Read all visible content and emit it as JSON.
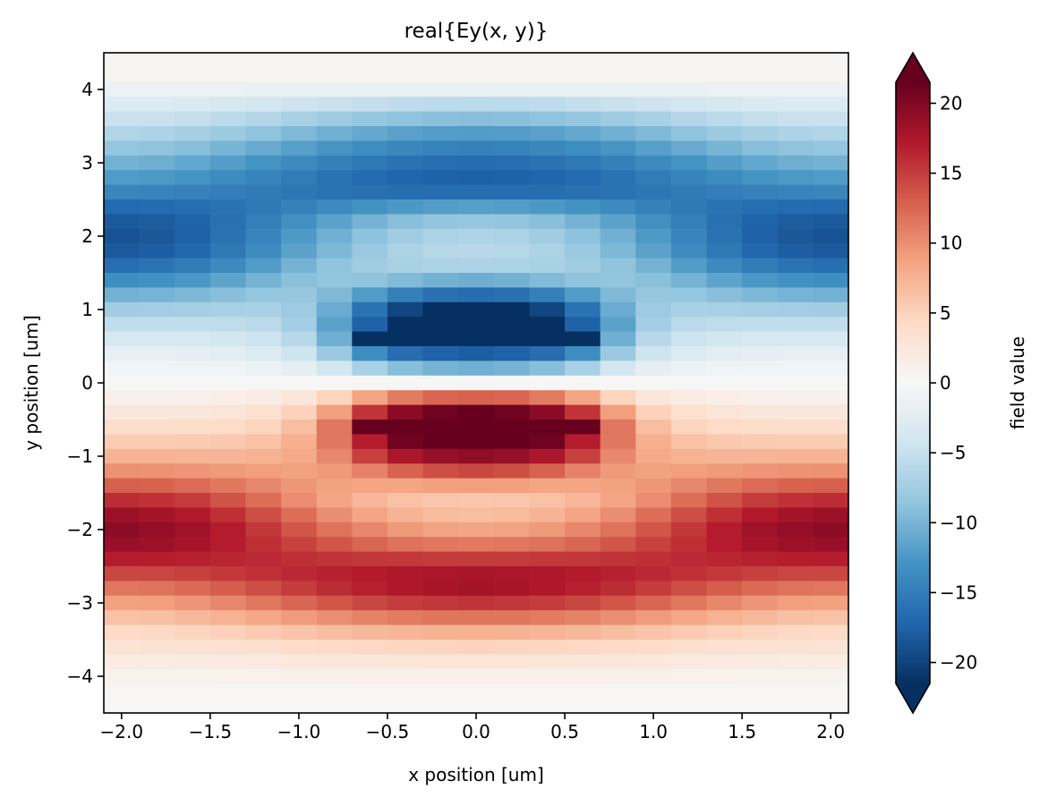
{
  "chart_data": {
    "type": "heatmap",
    "title": "real{Ey(x, y)}",
    "xlabel": "x position [um]",
    "ylabel": "y position [um]",
    "colorbar_label": "field value",
    "colormap": "RdBu_r",
    "colorbar_extend": "both",
    "xlim": [
      -2.1,
      2.1
    ],
    "ylim": [
      -4.5,
      4.5
    ],
    "clim": [
      -21.5,
      21.5
    ],
    "x_ticks": [
      -2.0,
      -1.5,
      -1.0,
      -0.5,
      0.0,
      0.5,
      1.0,
      1.5,
      2.0
    ],
    "x_tick_labels": [
      "−2.0",
      "−1.5",
      "−1.0",
      "−0.5",
      "0.0",
      "0.5",
      "1.0",
      "1.5",
      "2.0"
    ],
    "y_ticks": [
      4,
      3,
      2,
      1,
      0,
      -1,
      -2,
      -3,
      -4
    ],
    "y_tick_labels": [
      "4",
      "3",
      "2",
      "1",
      "0",
      "−1",
      "−2",
      "−3",
      "−4"
    ],
    "colorbar_ticks": [
      20,
      15,
      10,
      5,
      0,
      -5,
      -10,
      -15,
      -20
    ],
    "colorbar_tick_labels": [
      "20",
      "15",
      "10",
      "5",
      "0",
      "−5",
      "−10",
      "−15",
      "−20"
    ],
    "x": [
      -2.0,
      -1.8,
      -1.6,
      -1.4,
      -1.2,
      -1.0,
      -0.8,
      -0.6,
      -0.4,
      -0.2,
      0.0,
      0.2,
      0.4,
      0.6,
      0.8,
      1.0,
      1.2,
      1.4,
      1.6,
      1.8,
      2.0
    ],
    "y": [
      4.4,
      4.2,
      4.0,
      3.8,
      3.6,
      3.4,
      3.2,
      3.0,
      2.8,
      2.6,
      2.4,
      2.2,
      2.0,
      1.8,
      1.6,
      1.4,
      1.2,
      1.0,
      0.8,
      0.6,
      0.4,
      0.2,
      0.0,
      -0.2,
      -0.4,
      -0.6,
      -0.8,
      -1.0,
      -1.2,
      -1.4,
      -1.6,
      -1.8,
      -2.0,
      -2.2,
      -2.4,
      -2.6,
      -2.8,
      -3.0,
      -3.2,
      -3.4,
      -3.6,
      -3.8,
      -4.0,
      -4.2,
      -4.4
    ],
    "z": [
      [
        0.3,
        0.3,
        0.3,
        0.3,
        0.3,
        0.3,
        0.3,
        0.3,
        0.3,
        0.3,
        0.3,
        0.3,
        0.3,
        0.3,
        0.3,
        0.3,
        0.3,
        0.3,
        0.3,
        0.3,
        0.3
      ],
      [
        0.5,
        0.5,
        0.5,
        0.5,
        0.5,
        0.5,
        0.5,
        0.5,
        0.5,
        0.5,
        0.5,
        0.5,
        0.5,
        0.5,
        0.5,
        0.5,
        0.5,
        0.5,
        0.5,
        0.5,
        0.5
      ],
      [
        -1.4,
        -1.4,
        -1.4,
        -1.4,
        -1.5,
        -1.5,
        -1.5,
        -1.5,
        -1.5,
        -1.5,
        -1.5,
        -1.5,
        -1.5,
        -1.5,
        -1.5,
        -1.5,
        -1.5,
        -1.4,
        -1.4,
        -1.4,
        -1.4
      ],
      [
        -3.0,
        -3.1,
        -3.3,
        -3.6,
        -4.0,
        -4.4,
        -4.8,
        -5.2,
        -5.5,
        -5.7,
        -5.8,
        -5.7,
        -5.5,
        -5.2,
        -4.8,
        -4.4,
        -4.0,
        -3.6,
        -3.3,
        -3.1,
        -3.0
      ],
      [
        -4.7,
        -4.8,
        -5.2,
        -5.7,
        -6.3,
        -7.0,
        -7.7,
        -8.3,
        -8.7,
        -9.0,
        -9.1,
        -9.0,
        -8.7,
        -8.3,
        -7.7,
        -7.0,
        -6.3,
        -5.7,
        -5.2,
        -4.8,
        -4.7
      ],
      [
        -6.5,
        -6.7,
        -7.2,
        -7.9,
        -8.7,
        -9.6,
        -10.4,
        -11.1,
        -11.7,
        -12.0,
        -12.1,
        -12.0,
        -11.7,
        -11.1,
        -10.4,
        -9.6,
        -8.7,
        -7.9,
        -7.2,
        -6.7,
        -6.5
      ],
      [
        -8.4,
        -8.7,
        -9.2,
        -10.0,
        -10.9,
        -11.8,
        -12.7,
        -13.5,
        -14.1,
        -14.5,
        -14.6,
        -14.5,
        -14.1,
        -13.5,
        -12.7,
        -11.8,
        -10.9,
        -10.0,
        -9.2,
        -8.7,
        -8.4
      ],
      [
        -10.3,
        -10.6,
        -11.2,
        -12.0,
        -12.9,
        -13.8,
        -14.7,
        -15.5,
        -16.1,
        -16.5,
        -16.6,
        -16.5,
        -16.1,
        -15.5,
        -14.7,
        -13.8,
        -12.9,
        -12.0,
        -11.2,
        -10.6,
        -10.3
      ],
      [
        -12.2,
        -12.4,
        -12.9,
        -13.6,
        -14.4,
        -15.2,
        -16.0,
        -16.7,
        -17.2,
        -17.5,
        -17.6,
        -17.5,
        -17.2,
        -16.7,
        -16.0,
        -15.2,
        -14.4,
        -13.6,
        -12.9,
        -12.4,
        -12.2
      ],
      [
        -14.2,
        -14.4,
        -14.6,
        -14.9,
        -15.3,
        -15.7,
        -16.0,
        -16.2,
        -16.4,
        -16.5,
        -16.5,
        -16.5,
        -16.4,
        -16.2,
        -16.0,
        -15.7,
        -15.3,
        -14.9,
        -14.6,
        -14.4,
        -14.2
      ],
      [
        -16.8,
        -16.7,
        -16.4,
        -16.0,
        -15.4,
        -14.6,
        -13.8,
        -13.0,
        -12.4,
        -12.0,
        -11.9,
        -12.0,
        -12.4,
        -13.0,
        -13.8,
        -14.6,
        -15.4,
        -16.0,
        -16.4,
        -16.7,
        -16.8
      ],
      [
        -18.2,
        -17.9,
        -17.3,
        -16.2,
        -14.8,
        -13.2,
        -11.6,
        -10.2,
        -9.1,
        -8.5,
        -8.3,
        -8.5,
        -9.1,
        -10.2,
        -11.6,
        -13.2,
        -14.8,
        -16.2,
        -17.3,
        -17.9,
        -18.2
      ],
      [
        -18.7,
        -18.3,
        -17.5,
        -16.1,
        -14.3,
        -12.3,
        -10.4,
        -8.8,
        -7.6,
        -6.8,
        -6.6,
        -6.8,
        -7.6,
        -8.8,
        -10.4,
        -12.3,
        -14.3,
        -16.1,
        -17.5,
        -18.3,
        -18.7
      ],
      [
        -18.2,
        -17.8,
        -17.0,
        -15.5,
        -13.7,
        -11.6,
        -9.7,
        -8.1,
        -6.9,
        -6.2,
        -6.0,
        -6.2,
        -6.9,
        -8.1,
        -9.7,
        -11.6,
        -13.7,
        -15.5,
        -17.0,
        -17.8,
        -18.2
      ],
      [
        -16.3,
        -15.9,
        -15.1,
        -13.8,
        -12.1,
        -10.2,
        -8.7,
        -7.6,
        -7.0,
        -6.8,
        -6.7,
        -6.8,
        -7.0,
        -7.6,
        -8.7,
        -10.2,
        -12.1,
        -13.8,
        -15.1,
        -15.9,
        -16.3
      ],
      [
        -13.4,
        -13.1,
        -12.5,
        -11.5,
        -10.2,
        -9.0,
        -8.5,
        -8.7,
        -9.5,
        -10.3,
        -10.6,
        -10.3,
        -9.5,
        -8.7,
        -8.5,
        -9.0,
        -10.2,
        -11.5,
        -12.5,
        -13.1,
        -13.4
      ],
      [
        -10.3,
        -10.1,
        -9.7,
        -9.1,
        -8.4,
        -8.3,
        -9.6,
        -12.2,
        -14.7,
        -16.2,
        -16.6,
        -16.2,
        -14.7,
        -12.2,
        -9.6,
        -8.3,
        -8.4,
        -9.1,
        -9.7,
        -10.1,
        -10.3
      ],
      [
        -7.6,
        -7.5,
        -7.3,
        -7.1,
        -7.0,
        -7.8,
        -10.8,
        -16.0,
        -19.8,
        -21.6,
        -22.0,
        -21.6,
        -19.8,
        -16.0,
        -10.8,
        -7.8,
        -7.0,
        -7.1,
        -7.3,
        -7.5,
        -7.6
      ],
      [
        -5.4,
        -5.4,
        -5.4,
        -5.5,
        -5.9,
        -7.4,
        -11.6,
        -17.5,
        -21.5,
        -23.0,
        -23.5,
        -23.0,
        -21.5,
        -17.5,
        -11.6,
        -7.4,
        -5.9,
        -5.5,
        -5.4,
        -5.4,
        -5.4
      ],
      [
        -3.6,
        -3.6,
        -3.7,
        -4.0,
        -4.6,
        -6.1,
        -10.5,
        -22.5,
        -23.0,
        -23.5,
        -23.8,
        -23.5,
        -23.0,
        -22.5,
        -10.5,
        -6.1,
        -4.6,
        -4.0,
        -3.7,
        -3.6,
        -3.6
      ],
      [
        -2.0,
        -2.0,
        -2.1,
        -2.4,
        -3.0,
        -4.5,
        -8.0,
        -13.5,
        -16.5,
        -17.5,
        -17.8,
        -17.5,
        -16.5,
        -13.5,
        -8.0,
        -4.5,
        -3.0,
        -2.4,
        -2.1,
        -2.0,
        -2.0
      ],
      [
        -0.8,
        -0.8,
        -0.9,
        -1.0,
        -1.4,
        -2.2,
        -4.0,
        -7.0,
        -9.2,
        -10.2,
        -10.5,
        -10.2,
        -9.2,
        -7.0,
        -4.0,
        -2.2,
        -1.4,
        -1.0,
        -0.9,
        -0.8,
        -0.8
      ],
      [
        0.1,
        0.1,
        0.1,
        0.1,
        0.1,
        0.1,
        0.1,
        0.1,
        0.1,
        0.1,
        0.1,
        0.1,
        0.1,
        0.1,
        0.1,
        0.1,
        0.1,
        0.1,
        0.1,
        0.1,
        0.1
      ],
      [
        1.0,
        1.0,
        1.1,
        1.3,
        1.7,
        2.6,
        4.8,
        8.5,
        11.2,
        12.5,
        12.8,
        12.5,
        11.2,
        8.5,
        4.8,
        2.6,
        1.7,
        1.3,
        1.1,
        1.0,
        1.0
      ],
      [
        2.4,
        2.4,
        2.5,
        2.8,
        3.4,
        5.0,
        9.0,
        15.5,
        19.5,
        21.0,
        21.5,
        21.0,
        19.5,
        15.5,
        9.0,
        5.0,
        3.4,
        2.8,
        2.5,
        2.4,
        2.4
      ],
      [
        3.8,
        3.8,
        3.9,
        4.2,
        4.8,
        6.6,
        11.5,
        22.5,
        23.0,
        23.5,
        23.8,
        23.5,
        23.0,
        22.5,
        11.5,
        6.6,
        4.8,
        4.2,
        3.9,
        3.8,
        3.8
      ],
      [
        5.5,
        5.5,
        5.6,
        5.8,
        6.3,
        7.8,
        11.4,
        17.0,
        21.0,
        22.5,
        23.0,
        22.5,
        21.0,
        17.0,
        11.4,
        7.8,
        6.3,
        5.8,
        5.6,
        5.5,
        5.5
      ],
      [
        7.4,
        7.4,
        7.3,
        7.3,
        7.5,
        8.2,
        10.4,
        14.8,
        17.6,
        18.8,
        19.2,
        18.8,
        17.6,
        14.8,
        10.4,
        8.2,
        7.5,
        7.3,
        7.3,
        7.4,
        7.4
      ],
      [
        9.8,
        9.7,
        9.6,
        9.3,
        9.0,
        8.8,
        9.3,
        10.8,
        12.8,
        14.0,
        14.4,
        14.0,
        12.8,
        10.8,
        9.3,
        8.8,
        9.0,
        9.3,
        9.6,
        9.7,
        9.8
      ],
      [
        12.9,
        12.7,
        12.2,
        11.4,
        10.5,
        9.5,
        8.8,
        8.5,
        8.6,
        8.9,
        9.0,
        8.9,
        8.6,
        8.5,
        8.8,
        9.5,
        10.5,
        11.4,
        12.2,
        12.7,
        12.9
      ],
      [
        16.0,
        15.7,
        15.0,
        13.7,
        12.0,
        10.1,
        8.5,
        7.2,
        6.4,
        6.0,
        5.9,
        6.0,
        6.4,
        7.2,
        8.5,
        10.1,
        12.0,
        13.7,
        15.0,
        15.7,
        16.0
      ],
      [
        18.4,
        18.0,
        17.2,
        15.8,
        14.0,
        12.0,
        10.1,
        8.5,
        7.4,
        6.8,
        6.6,
        6.8,
        7.4,
        8.5,
        10.1,
        12.0,
        14.0,
        15.8,
        17.2,
        18.0,
        18.4
      ],
      [
        19.4,
        19.0,
        18.3,
        17.0,
        15.3,
        13.5,
        11.8,
        10.4,
        9.3,
        8.7,
        8.5,
        8.7,
        9.3,
        10.4,
        11.8,
        13.5,
        15.3,
        17.0,
        18.3,
        19.0,
        19.4
      ],
      [
        18.7,
        18.4,
        17.9,
        17.0,
        15.9,
        14.7,
        13.5,
        12.5,
        11.8,
        11.4,
        11.3,
        11.4,
        11.8,
        12.5,
        13.5,
        14.7,
        15.9,
        17.0,
        17.9,
        18.4,
        18.7
      ],
      [
        17.0,
        16.9,
        16.7,
        16.4,
        16.1,
        15.8,
        15.5,
        15.3,
        15.2,
        15.1,
        15.1,
        15.1,
        15.2,
        15.3,
        15.5,
        15.8,
        16.1,
        16.4,
        16.7,
        16.9,
        17.0
      ],
      [
        14.4,
        14.5,
        14.8,
        15.2,
        15.7,
        16.2,
        16.7,
        17.1,
        17.4,
        17.6,
        17.7,
        17.6,
        17.4,
        17.1,
        16.7,
        16.2,
        15.7,
        15.2,
        14.8,
        14.5,
        14.4
      ],
      [
        11.5,
        11.7,
        12.3,
        13.1,
        14.0,
        15.0,
        16.0,
        16.8,
        17.4,
        17.8,
        18.0,
        17.8,
        17.4,
        16.8,
        16.0,
        15.0,
        14.0,
        13.1,
        12.3,
        11.7,
        11.5
      ],
      [
        8.8,
        9.0,
        9.6,
        10.4,
        11.4,
        12.5,
        13.5,
        14.4,
        15.0,
        15.4,
        15.6,
        15.4,
        15.0,
        14.4,
        13.5,
        12.5,
        11.4,
        10.4,
        9.6,
        9.0,
        8.8
      ],
      [
        6.3,
        6.5,
        7.0,
        7.6,
        8.4,
        9.2,
        10.0,
        10.7,
        11.2,
        11.5,
        11.6,
        11.5,
        11.2,
        10.7,
        10.0,
        9.2,
        8.4,
        7.6,
        7.0,
        6.5,
        6.3
      ],
      [
        4.3,
        4.4,
        4.7,
        5.1,
        5.6,
        6.1,
        6.6,
        7.0,
        7.3,
        7.5,
        7.6,
        7.5,
        7.3,
        7.0,
        6.6,
        6.1,
        5.6,
        5.1,
        4.7,
        4.4,
        4.3
      ],
      [
        3.0,
        3.1,
        3.2,
        3.4,
        3.7,
        4.0,
        4.3,
        4.5,
        4.7,
        4.8,
        4.9,
        4.8,
        4.7,
        4.5,
        4.3,
        4.0,
        3.7,
        3.4,
        3.2,
        3.1,
        3.0
      ],
      [
        1.8,
        1.8,
        1.9,
        2.0,
        2.1,
        2.3,
        2.4,
        2.5,
        2.6,
        2.7,
        2.7,
        2.7,
        2.6,
        2.5,
        2.4,
        2.3,
        2.1,
        2.0,
        1.9,
        1.8,
        1.8
      ],
      [
        0.8,
        0.8,
        0.8,
        0.9,
        0.9,
        1.0,
        1.0,
        1.1,
        1.1,
        1.1,
        1.1,
        1.1,
        1.1,
        1.1,
        1.0,
        1.0,
        0.9,
        0.9,
        0.8,
        0.8,
        0.8
      ],
      [
        0.2,
        0.2,
        0.2,
        0.2,
        0.2,
        0.2,
        0.2,
        0.2,
        0.2,
        0.2,
        0.2,
        0.2,
        0.2,
        0.2,
        0.2,
        0.2,
        0.2,
        0.2,
        0.2,
        0.2,
        0.2
      ],
      [
        0.1,
        0.1,
        0.1,
        0.1,
        0.1,
        0.1,
        0.1,
        0.1,
        0.1,
        0.1,
        0.1,
        0.1,
        0.1,
        0.1,
        0.1,
        0.1,
        0.1,
        0.1,
        0.1,
        0.1,
        0.1
      ]
    ]
  }
}
